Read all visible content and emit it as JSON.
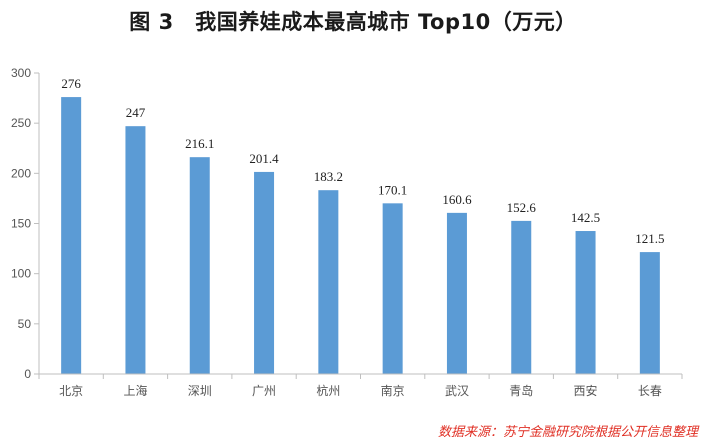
{
  "chart_data": {
    "type": "bar",
    "title": "图 3　我国养娃成本最高城市 Top10（万元）",
    "categories": [
      "北京",
      "上海",
      "深圳",
      "广州",
      "杭州",
      "南京",
      "武汉",
      "青岛",
      "西安",
      "长春"
    ],
    "values": [
      276,
      247,
      216.1,
      201.4,
      183.2,
      170.1,
      160.6,
      152.6,
      142.5,
      121.5
    ],
    "value_labels": [
      "276",
      "247",
      "216.1",
      "201.4",
      "183.2",
      "170.1",
      "160.6",
      "152.6",
      "142.5",
      "121.5"
    ],
    "yticks": [
      0,
      50,
      100,
      150,
      200,
      250,
      300
    ],
    "ylim": [
      0,
      300
    ],
    "xlabel": "",
    "ylabel": "",
    "grid": false,
    "legend": "none",
    "bar_color": "#5b9bd5",
    "axis_color": "#bfbfbf"
  },
  "source": "数据来源：苏宁金融研究院根据公开信息整理"
}
